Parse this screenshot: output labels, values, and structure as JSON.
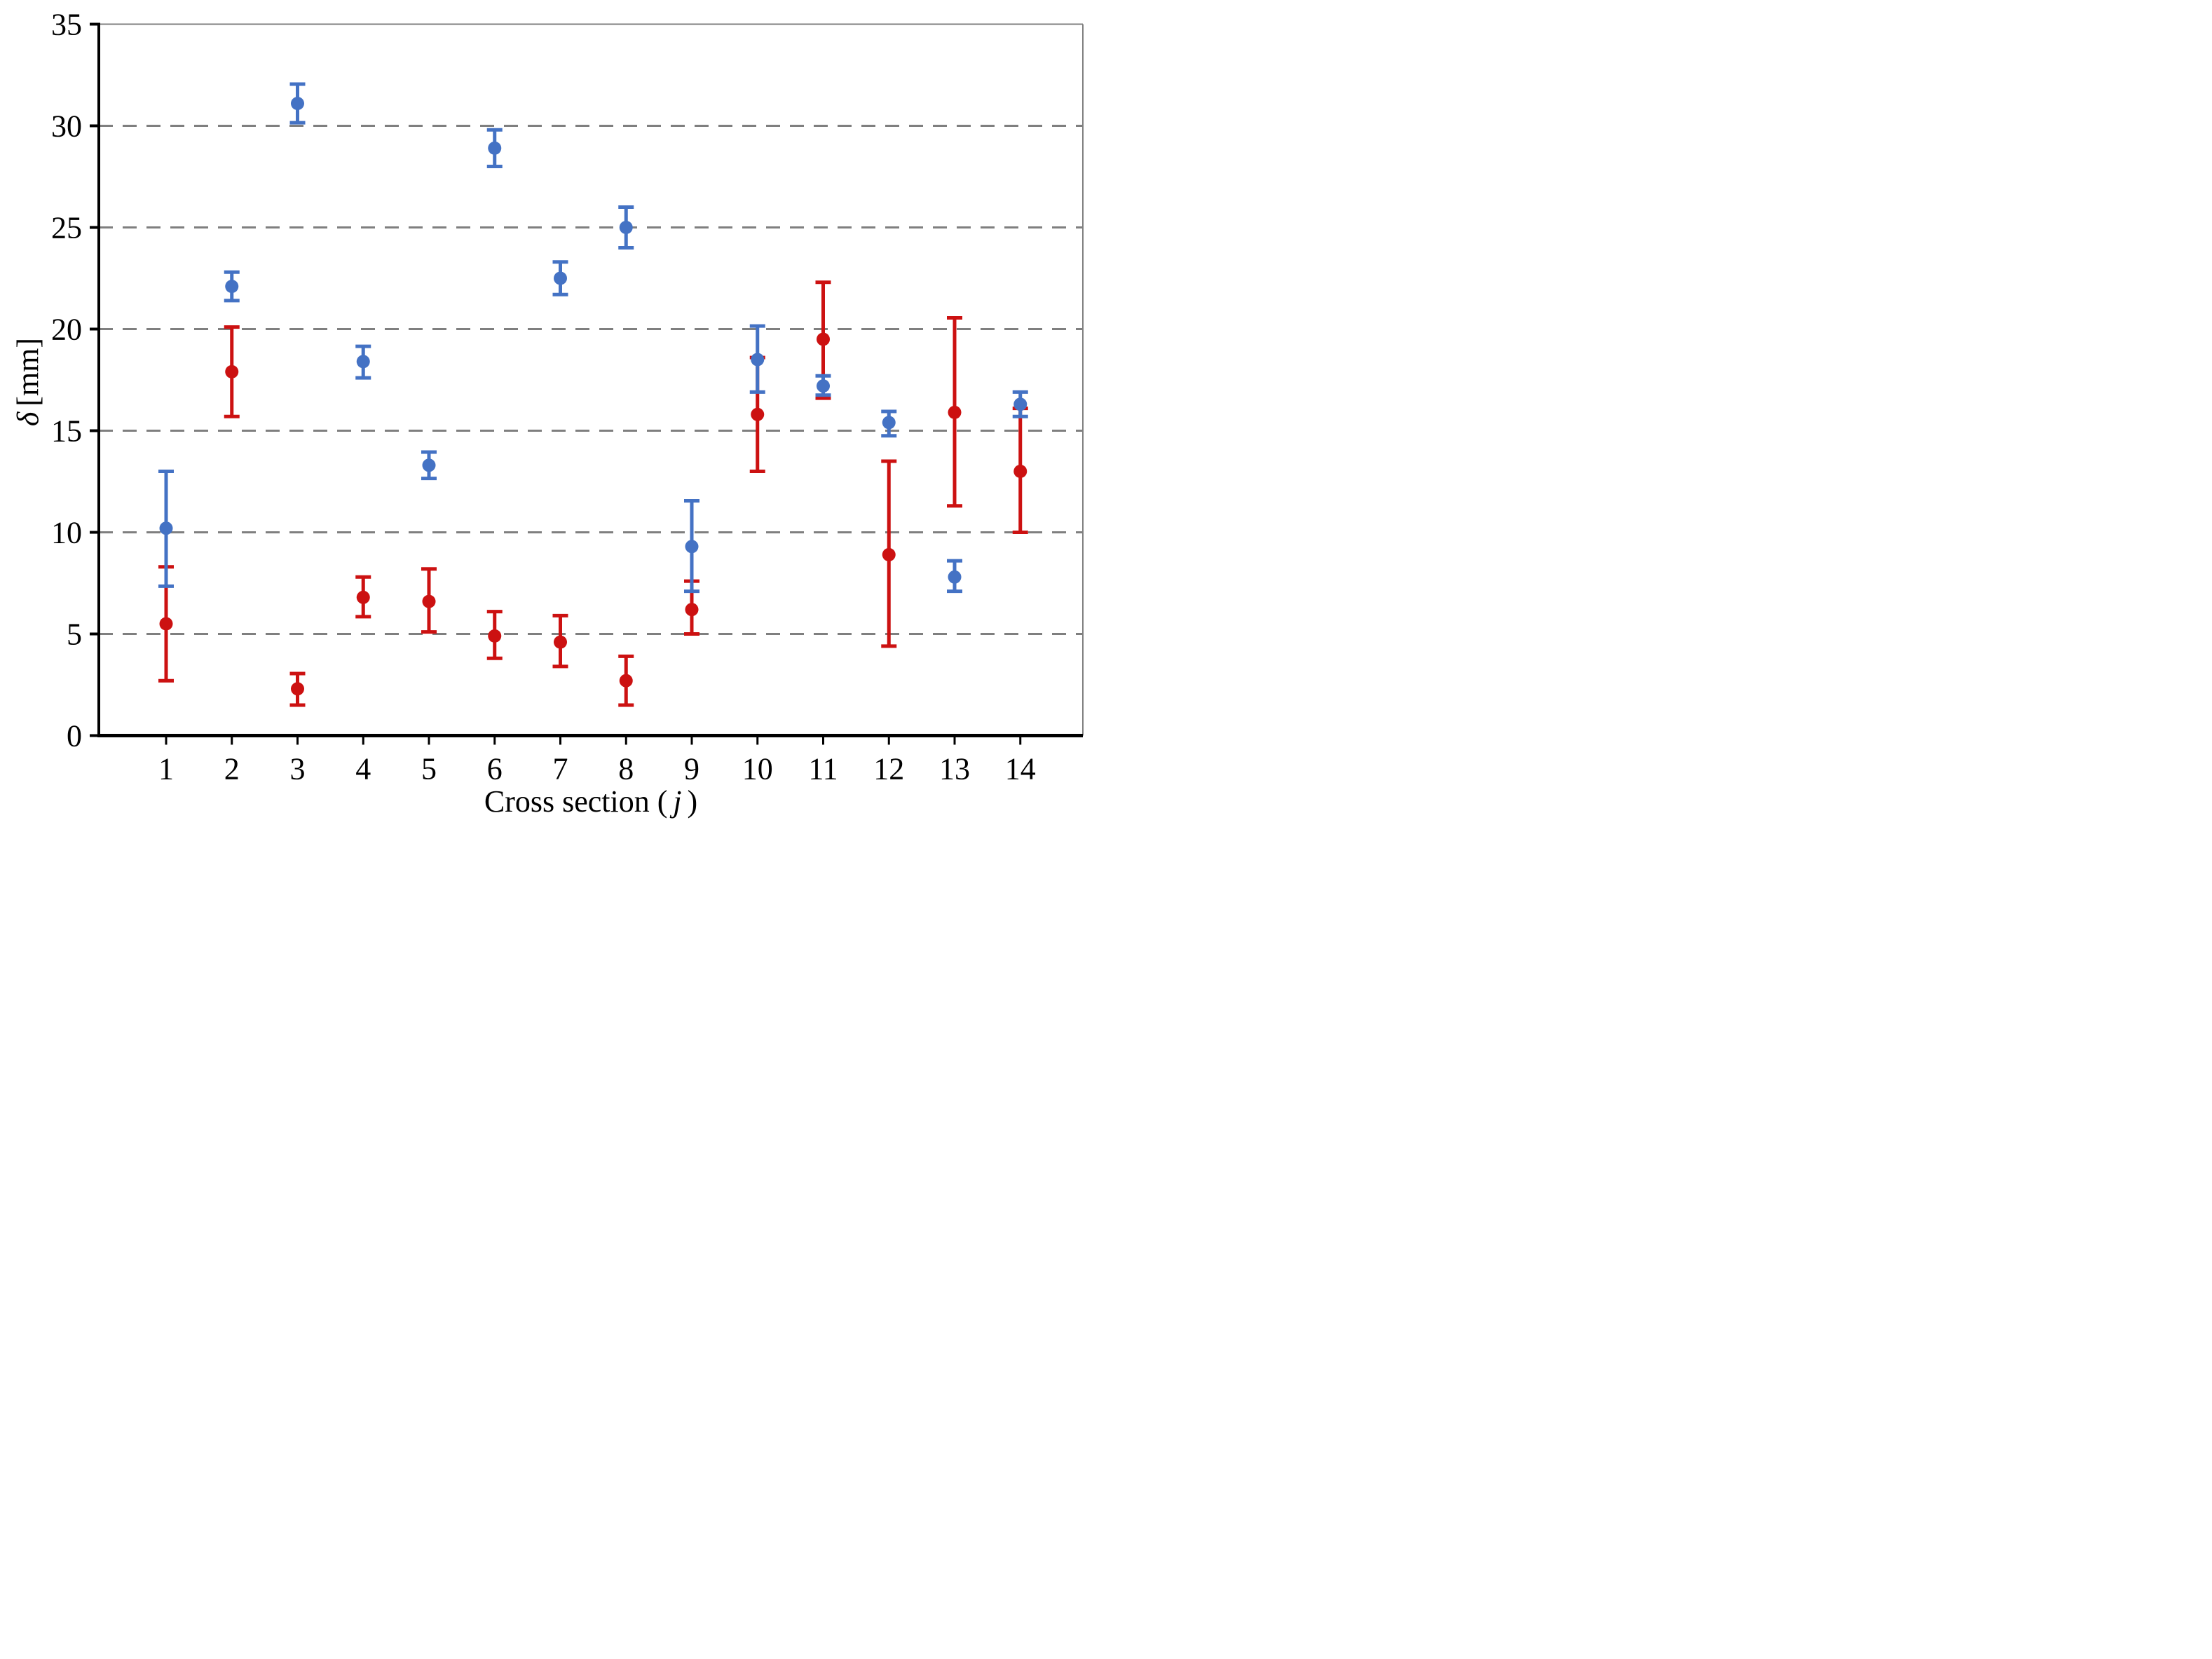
{
  "figure": {
    "xlabel": {
      "prefix": "Cross section (",
      "var": "j",
      "suffix": ")"
    },
    "ylabel": {
      "var": "δ",
      "unit": "[mm]"
    }
  },
  "chart_data": {
    "type": "scatter",
    "title": "",
    "xlabel": "Cross section ( j )",
    "ylabel": "δ [mm]",
    "x": [
      1,
      2,
      3,
      4,
      5,
      6,
      7,
      8,
      9,
      10,
      11,
      12,
      13,
      14
    ],
    "xlim": [
      0.5,
      14.9
    ],
    "ylim": [
      0,
      35
    ],
    "yticks": [
      0,
      5,
      10,
      15,
      20,
      25,
      30,
      35
    ],
    "grid": {
      "horizontal": true,
      "style": "dashed",
      "at": [
        5,
        10,
        15,
        20,
        25,
        30
      ],
      "color": "#7F7F7F"
    },
    "legend": "none",
    "marker": "circle",
    "series": [
      {
        "name": "red",
        "color": "#CC1111",
        "values": [
          5.5,
          17.9,
          2.3,
          6.8,
          6.6,
          4.9,
          4.6,
          2.7,
          6.2,
          15.8,
          19.5,
          8.9,
          15.9,
          13.0
        ],
        "err_plus": [
          2.8,
          2.2,
          0.75,
          1.0,
          1.6,
          1.2,
          1.3,
          1.2,
          1.4,
          2.8,
          2.8,
          4.6,
          4.65,
          3.1
        ],
        "err_minus": [
          2.8,
          2.2,
          0.8,
          0.95,
          1.5,
          1.1,
          1.2,
          1.2,
          1.2,
          2.8,
          2.9,
          4.5,
          4.6,
          3.0
        ]
      },
      {
        "name": "blue",
        "color": "#4472C4",
        "values": [
          10.2,
          22.1,
          31.1,
          18.4,
          13.3,
          28.9,
          22.5,
          25.0,
          9.3,
          18.5,
          17.2,
          15.4,
          7.8,
          16.3
        ],
        "err_plus": [
          2.8,
          0.7,
          0.95,
          0.75,
          0.65,
          0.9,
          0.8,
          1.0,
          2.25,
          1.65,
          0.5,
          0.55,
          0.8,
          0.6
        ],
        "err_minus": [
          2.85,
          0.7,
          0.95,
          0.8,
          0.65,
          0.9,
          0.8,
          1.0,
          2.2,
          1.6,
          0.45,
          0.65,
          0.7,
          0.6
        ]
      }
    ],
    "axis_color": "#000000",
    "border_color": "#808080"
  }
}
